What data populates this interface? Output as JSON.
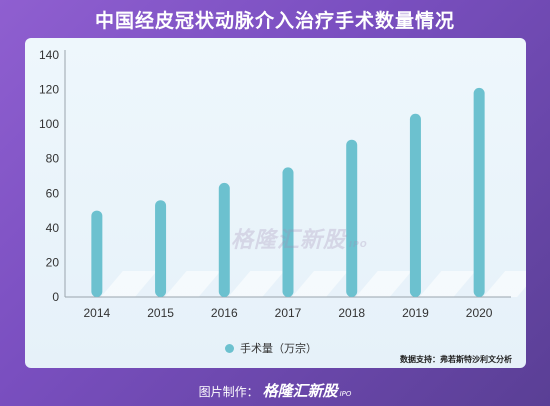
{
  "header": {
    "title": "中国经皮冠状动脉介入治疗手术数量情况"
  },
  "legend": {
    "label": "手术量（万宗）"
  },
  "source": {
    "text": "数据支持：弗若斯特沙利文分析"
  },
  "watermark": {
    "brand": "格隆汇新股",
    "sub": "IPO"
  },
  "footer": {
    "prefix": "图片制作：",
    "brand": "格隆汇新股",
    "sub": "IPO"
  },
  "colors": {
    "bar": "#6cc1cf",
    "background": "#7a4fc0",
    "card": "#eef7fc"
  },
  "chart_data": {
    "type": "bar",
    "categories": [
      "2014",
      "2015",
      "2016",
      "2017",
      "2018",
      "2019",
      "2020"
    ],
    "series": [
      {
        "name": "手术量（万宗）",
        "values": [
          50,
          56,
          66,
          75,
          91,
          106,
          121
        ]
      }
    ],
    "xlabel": "",
    "ylabel": "",
    "ylim": [
      0,
      140
    ],
    "yticks": [
      0,
      20,
      40,
      60,
      80,
      100,
      120,
      140
    ],
    "grid": false,
    "legend_position": "bottom"
  }
}
